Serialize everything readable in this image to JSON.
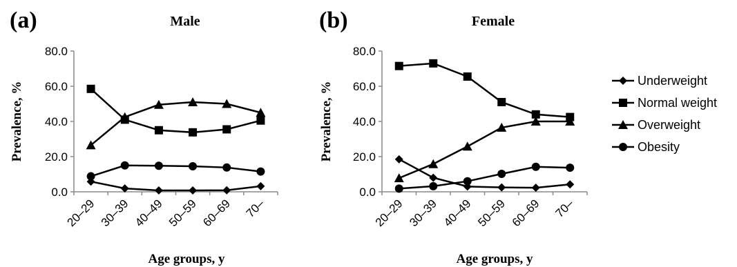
{
  "chart_data": [
    {
      "type": "line",
      "panel_label": "(a)",
      "title": "Male",
      "xlabel": "Age groups, y",
      "ylabel": "Prevalence, %",
      "ylim": [
        0,
        80
      ],
      "yticks": [
        "0.0",
        "20.0",
        "40.0",
        "60.0",
        "80.0"
      ],
      "categories": [
        "20–29",
        "30–39",
        "40–49",
        "50–59",
        "60–69",
        "70–"
      ],
      "grid": false,
      "series": [
        {
          "name": "Underweight",
          "marker": "diamond",
          "values": [
            5.8,
            1.9,
            0.8,
            0.8,
            0.9,
            3.2
          ]
        },
        {
          "name": "Normal weight",
          "marker": "square",
          "values": [
            58.5,
            41.0,
            35.0,
            33.8,
            35.5,
            40.5
          ]
        },
        {
          "name": "Overweight",
          "marker": "triangle",
          "values": [
            26.5,
            42.5,
            49.5,
            51.0,
            50.0,
            45.0
          ]
        },
        {
          "name": "Obesity",
          "marker": "circle",
          "values": [
            8.8,
            15.0,
            14.8,
            14.5,
            13.8,
            11.5
          ]
        }
      ]
    },
    {
      "type": "line",
      "panel_label": "(b)",
      "title": "Female",
      "xlabel": "Age groups, y",
      "ylabel": "Prevalence, %",
      "ylim": [
        0,
        80
      ],
      "yticks": [
        "0.0",
        "20.0",
        "40.0",
        "60.0",
        "80.0"
      ],
      "categories": [
        "20–29",
        "30–39",
        "40–49",
        "50–59",
        "60–69",
        "70–"
      ],
      "grid": false,
      "series": [
        {
          "name": "Underweight",
          "marker": "diamond",
          "values": [
            18.5,
            8.0,
            3.0,
            2.5,
            2.3,
            4.2
          ]
        },
        {
          "name": "Normal weight",
          "marker": "square",
          "values": [
            71.5,
            73.0,
            65.5,
            51.0,
            44.0,
            42.5
          ]
        },
        {
          "name": "Overweight",
          "marker": "triangle",
          "values": [
            7.8,
            15.8,
            25.8,
            36.5,
            40.0,
            40.0
          ]
        },
        {
          "name": "Obesity",
          "marker": "circle",
          "values": [
            1.8,
            3.2,
            6.0,
            10.2,
            14.2,
            13.7
          ]
        }
      ]
    }
  ],
  "legend": {
    "placement": "right",
    "items": [
      {
        "label": "Underweight",
        "marker": "diamond"
      },
      {
        "label": "Normal weight",
        "marker": "square"
      },
      {
        "label": "Overweight",
        "marker": "triangle"
      },
      {
        "label": "Obesity",
        "marker": "circle"
      }
    ]
  },
  "colors": {
    "line": "#000000",
    "background": "#ffffff"
  }
}
